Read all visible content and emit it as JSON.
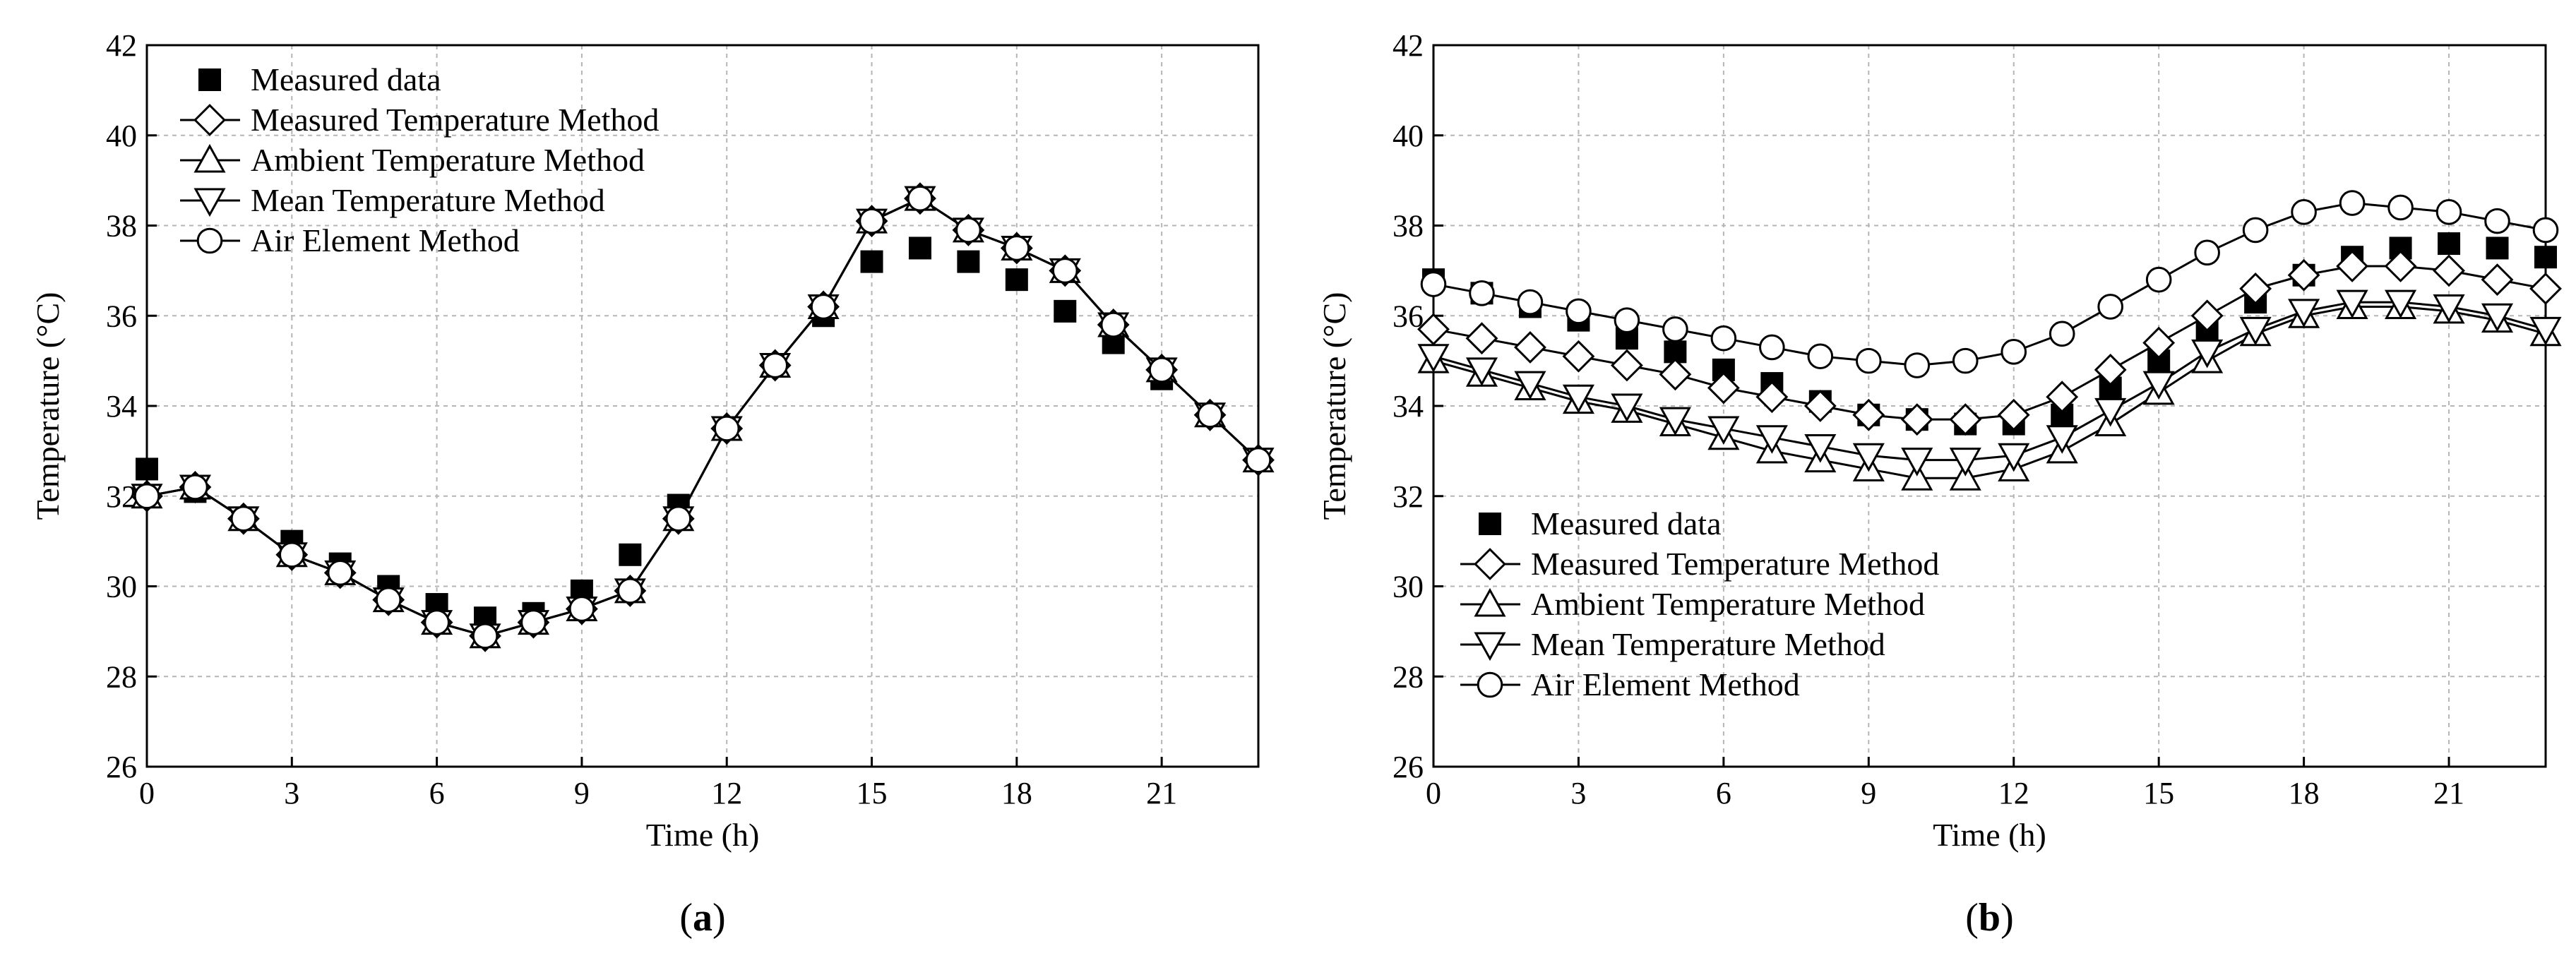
{
  "chart_data": [
    {
      "type": "line",
      "panel_label": "a",
      "xlabel": "Time (h)",
      "ylabel": "Temperature (°C)",
      "xlim": [
        0,
        23
      ],
      "ylim": [
        26,
        42
      ],
      "xticks": [
        0,
        3,
        6,
        9,
        12,
        15,
        18,
        21
      ],
      "yticks": [
        26,
        28,
        30,
        32,
        34,
        36,
        38,
        40,
        42
      ],
      "grid": true,
      "legend_position": "top-left",
      "x": [
        0,
        1,
        2,
        3,
        4,
        5,
        6,
        7,
        8,
        9,
        10,
        11,
        12,
        13,
        14,
        15,
        16,
        17,
        18,
        19,
        20,
        21,
        22,
        23
      ],
      "series": [
        {
          "name": "Measured data",
          "marker": "square-filled",
          "line": false,
          "values": [
            32.6,
            32.1,
            31.5,
            31.0,
            30.5,
            30.0,
            29.6,
            29.3,
            29.4,
            29.9,
            30.7,
            31.8,
            33.5,
            34.9,
            36.0,
            37.2,
            37.5,
            37.2,
            36.8,
            36.1,
            35.4,
            34.6,
            33.8,
            32.8
          ]
        },
        {
          "name": "Measured Temperature Method",
          "marker": "diamond",
          "line": true,
          "values": [
            32.0,
            32.2,
            31.5,
            30.7,
            30.3,
            29.7,
            29.2,
            28.9,
            29.2,
            29.5,
            29.9,
            31.5,
            33.5,
            34.9,
            36.2,
            38.1,
            38.6,
            37.9,
            37.5,
            37.0,
            35.8,
            34.8,
            33.8,
            32.8
          ]
        },
        {
          "name": "Ambient Temperature Method",
          "marker": "triangle-up",
          "line": true,
          "values": [
            32.0,
            32.2,
            31.5,
            30.7,
            30.3,
            29.7,
            29.2,
            28.9,
            29.2,
            29.5,
            29.9,
            31.5,
            33.5,
            34.9,
            36.2,
            38.1,
            38.6,
            37.9,
            37.5,
            37.0,
            35.8,
            34.8,
            33.8,
            32.8
          ]
        },
        {
          "name": "Mean Temperature Method",
          "marker": "triangle-down",
          "line": true,
          "values": [
            32.0,
            32.2,
            31.5,
            30.7,
            30.3,
            29.7,
            29.2,
            28.9,
            29.2,
            29.5,
            29.9,
            31.5,
            33.5,
            34.9,
            36.2,
            38.1,
            38.6,
            37.9,
            37.5,
            37.0,
            35.8,
            34.8,
            33.8,
            32.8
          ]
        },
        {
          "name": "Air Element Method",
          "marker": "circle",
          "line": true,
          "values": [
            32.0,
            32.2,
            31.5,
            30.7,
            30.3,
            29.7,
            29.2,
            28.9,
            29.2,
            29.5,
            29.9,
            31.5,
            33.5,
            34.9,
            36.2,
            38.1,
            38.6,
            37.9,
            37.5,
            37.0,
            35.8,
            34.8,
            33.8,
            32.8
          ]
        }
      ]
    },
    {
      "type": "line",
      "panel_label": "b",
      "xlabel": "Time (h)",
      "ylabel": "Temperature (°C)",
      "xlim": [
        0,
        23
      ],
      "ylim": [
        26,
        42
      ],
      "xticks": [
        0,
        3,
        6,
        9,
        12,
        15,
        18,
        21
      ],
      "yticks": [
        26,
        28,
        30,
        32,
        34,
        36,
        38,
        40,
        42
      ],
      "grid": true,
      "legend_position": "bottom-left",
      "x": [
        0,
        1,
        2,
        3,
        4,
        5,
        6,
        7,
        8,
        9,
        10,
        11,
        12,
        13,
        14,
        15,
        16,
        17,
        18,
        19,
        20,
        21,
        22,
        23
      ],
      "series": [
        {
          "name": "Measured data",
          "marker": "square-filled",
          "line": false,
          "values": [
            36.8,
            36.5,
            36.2,
            35.9,
            35.5,
            35.2,
            34.8,
            34.5,
            34.1,
            33.8,
            33.7,
            33.6,
            33.6,
            33.8,
            34.4,
            35.0,
            35.7,
            36.3,
            36.9,
            37.3,
            37.5,
            37.6,
            37.5,
            37.3
          ]
        },
        {
          "name": "Measured Temperature Method",
          "marker": "diamond",
          "line": true,
          "values": [
            35.7,
            35.5,
            35.3,
            35.1,
            34.9,
            34.7,
            34.4,
            34.2,
            34.0,
            33.8,
            33.7,
            33.7,
            33.8,
            34.2,
            34.8,
            35.4,
            36.0,
            36.6,
            36.9,
            37.1,
            37.1,
            37.0,
            36.8,
            36.6
          ]
        },
        {
          "name": "Ambient Temperature Method",
          "marker": "triangle-up",
          "line": true,
          "values": [
            35.0,
            34.7,
            34.4,
            34.1,
            33.9,
            33.6,
            33.3,
            33.0,
            32.8,
            32.6,
            32.4,
            32.4,
            32.6,
            33.0,
            33.6,
            34.3,
            35.0,
            35.6,
            36.0,
            36.2,
            36.2,
            36.1,
            35.9,
            35.6
          ]
        },
        {
          "name": "Mean Temperature Method",
          "marker": "triangle-down",
          "line": true,
          "values": [
            35.1,
            34.8,
            34.5,
            34.2,
            34.0,
            33.7,
            33.5,
            33.3,
            33.1,
            32.9,
            32.8,
            32.8,
            32.9,
            33.3,
            33.9,
            34.5,
            35.2,
            35.7,
            36.1,
            36.3,
            36.3,
            36.2,
            36.0,
            35.7
          ]
        },
        {
          "name": "Air Element Method",
          "marker": "circle",
          "line": true,
          "values": [
            36.7,
            36.5,
            36.3,
            36.1,
            35.9,
            35.7,
            35.5,
            35.3,
            35.1,
            35.0,
            34.9,
            35.0,
            35.2,
            35.6,
            36.2,
            36.8,
            37.4,
            37.9,
            38.3,
            38.5,
            38.4,
            38.3,
            38.1,
            37.9
          ]
        }
      ]
    }
  ]
}
